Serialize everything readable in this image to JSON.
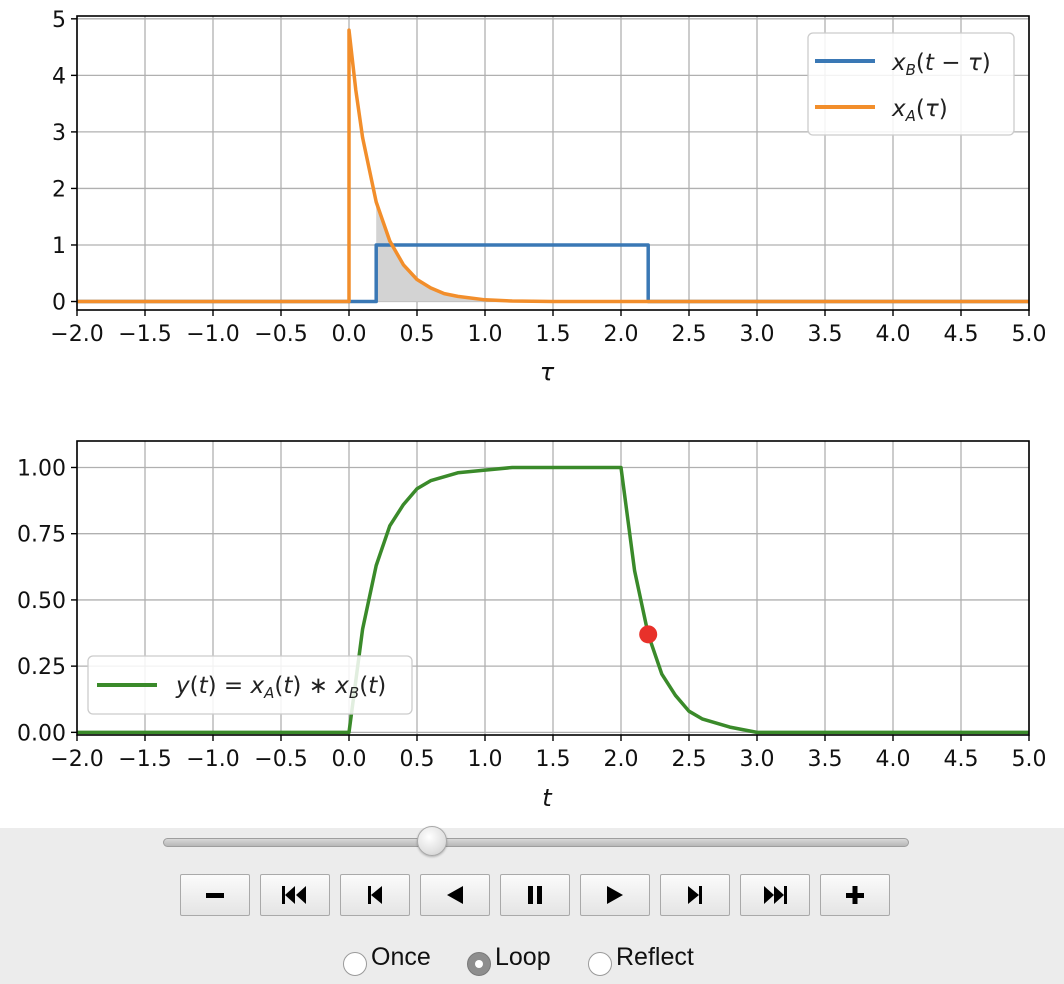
{
  "chart_data": [
    {
      "type": "line",
      "xlabel": "τ",
      "xlim": [
        -2.0,
        5.0
      ],
      "ylim": [
        -0.15,
        5.05
      ],
      "xticks": [
        "−2.0",
        "−1.5",
        "−1.0",
        "−0.5",
        "0.0",
        "0.5",
        "1.0",
        "1.5",
        "2.0",
        "2.5",
        "3.0",
        "3.5",
        "4.0",
        "4.5",
        "5.0"
      ],
      "yticks": [
        "0",
        "1",
        "2",
        "3",
        "4",
        "5"
      ],
      "grid": true,
      "legend_position": "top-right",
      "shaded_overlap": {
        "from": 0.2,
        "to": 2.2,
        "color": "#d3d3d3"
      },
      "series": [
        {
          "name": "x_B(t − τ)",
          "color": "#3a78b5",
          "x": [
            -2.0,
            0.2,
            0.2,
            2.2,
            2.2,
            5.0
          ],
          "y": [
            0,
            0,
            1,
            1,
            0,
            0
          ]
        },
        {
          "name": "x_A(τ)",
          "color": "#f28e2b",
          "x": [
            -2.0,
            0.0,
            0.0,
            0.05,
            0.1,
            0.2,
            0.3,
            0.4,
            0.5,
            0.6,
            0.7,
            0.8,
            1.0,
            1.2,
            1.5,
            5.0
          ],
          "y": [
            0,
            0,
            4.8,
            3.74,
            2.9,
            1.76,
            1.07,
            0.65,
            0.39,
            0.24,
            0.14,
            0.09,
            0.03,
            0.01,
            0.0,
            0.0
          ]
        }
      ]
    },
    {
      "type": "line",
      "xlabel": "t",
      "xlim": [
        -2.0,
        5.0
      ],
      "ylim": [
        -0.01,
        1.1
      ],
      "xticks": [
        "−2.0",
        "−1.5",
        "−1.0",
        "−0.5",
        "0.0",
        "0.5",
        "1.0",
        "1.5",
        "2.0",
        "2.5",
        "3.0",
        "3.5",
        "4.0",
        "4.5",
        "5.0"
      ],
      "yticks": [
        "0.00",
        "0.25",
        "0.50",
        "0.75",
        "1.00"
      ],
      "grid": true,
      "legend_position": "lower-left",
      "series": [
        {
          "name": "y(t) = x_A(t) * x_B(t)",
          "color": "#3a8a2a",
          "x": [
            -2.0,
            0.0,
            0.1,
            0.2,
            0.3,
            0.4,
            0.5,
            0.6,
            0.8,
            1.0,
            1.2,
            1.5,
            2.0,
            2.1,
            2.2,
            2.3,
            2.4,
            2.5,
            2.6,
            2.8,
            3.0,
            3.5,
            5.0
          ],
          "y": [
            0,
            0,
            0.39,
            0.63,
            0.78,
            0.86,
            0.92,
            0.95,
            0.98,
            0.99,
            1.0,
            1.0,
            1.0,
            0.61,
            0.37,
            0.22,
            0.14,
            0.08,
            0.05,
            0.02,
            0.0,
            0.0,
            0.0
          ]
        }
      ],
      "marker": {
        "x": 2.2,
        "y": 0.37,
        "color": "#e8312a"
      }
    }
  ],
  "animation_controls": {
    "slider_value_fraction": 0.36,
    "buttons": [
      "decrease-speed",
      "first-frame",
      "previous-frame",
      "play-reverse",
      "pause",
      "play-forward",
      "next-frame",
      "last-frame",
      "increase-speed"
    ],
    "modes": [
      {
        "label": "Once",
        "checked": false
      },
      {
        "label": "Loop",
        "checked": true
      },
      {
        "label": "Reflect",
        "checked": false
      }
    ]
  }
}
